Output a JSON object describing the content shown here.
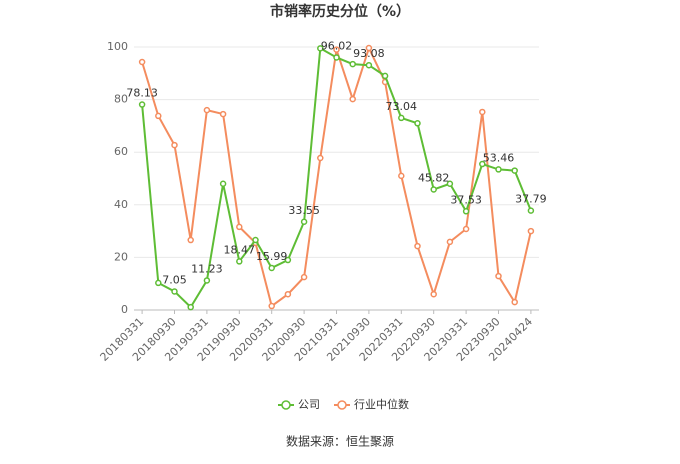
{
  "chart_data": {
    "type": "line",
    "title": "市销率历史分位（%）",
    "categories": [
      "20180331",
      null,
      "20180930",
      null,
      "20190331",
      null,
      "20190930",
      null,
      "20200331",
      null,
      "20200930",
      null,
      "20210331",
      null,
      "20210930",
      null,
      "20220331",
      null,
      "20220930",
      null,
      "20230331",
      null,
      "20230930",
      null,
      "20240424"
    ],
    "series": [
      {
        "name": "公司",
        "color": "#5ebd35",
        "values": [
          78.13,
          10.3,
          7.05,
          1.1,
          11.23,
          48,
          18.47,
          26.6,
          15.99,
          19,
          33.55,
          99.5,
          96.02,
          93.5,
          93.08,
          89,
          73.04,
          71,
          45.82,
          48,
          37.53,
          55.5,
          53.46,
          53,
          37.79
        ],
        "value_labels": [
          "78.13",
          null,
          "7.05",
          null,
          "11.23",
          null,
          "18.47",
          null,
          "15.99",
          null,
          "33.55",
          null,
          "96.02",
          null,
          "93.08",
          null,
          "73.04",
          null,
          "45.82",
          null,
          "37.53",
          null,
          "53.46",
          null,
          "37.79"
        ]
      },
      {
        "name": "行业中位数",
        "color": "#f48c5e",
        "values": [
          94.3,
          73.8,
          62.7,
          26.6,
          76,
          74.5,
          31.6,
          25.5,
          1.5,
          6,
          12.5,
          57.8,
          99,
          80.2,
          99.6,
          86.7,
          51,
          24.3,
          6,
          25.9,
          30.8,
          75.3,
          12.9,
          3,
          30
        ]
      }
    ],
    "ylim": [
      0,
      100
    ],
    "yticks": [
      0,
      20,
      40,
      60,
      80,
      100
    ],
    "grid": true,
    "legend": "bottom",
    "source": "数据来源：恒生聚源"
  }
}
